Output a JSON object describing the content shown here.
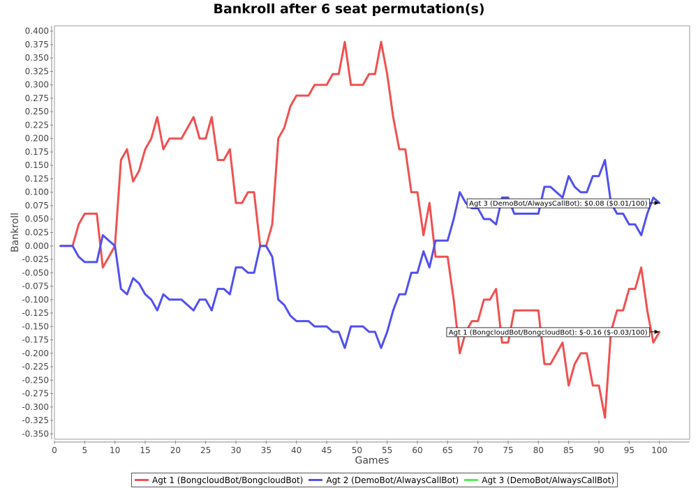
{
  "chart_data": {
    "type": "line",
    "title": "Bankroll after 6 seat permutation(s)",
    "xlabel": "Games",
    "ylabel": "Bankroll",
    "xlim": [
      0,
      105
    ],
    "ylim": [
      -0.36,
      0.41
    ],
    "x_ticks": [
      0,
      5,
      10,
      15,
      20,
      25,
      30,
      35,
      40,
      45,
      50,
      55,
      60,
      65,
      70,
      75,
      80,
      85,
      90,
      95,
      100
    ],
    "y_ticks": [
      -0.35,
      -0.325,
      -0.3,
      -0.275,
      -0.25,
      -0.225,
      -0.2,
      -0.175,
      -0.15,
      -0.125,
      -0.1,
      -0.075,
      -0.05,
      -0.025,
      0.0,
      0.025,
      0.05,
      0.075,
      0.1,
      0.125,
      0.15,
      0.175,
      0.2,
      0.225,
      0.25,
      0.275,
      0.3,
      0.325,
      0.35,
      0.375,
      0.4
    ],
    "grid": false,
    "legend_position": "bottom",
    "series": [
      {
        "name": "Agt 1 (BongcloudBot/BongcloudBot)",
        "color": "#f05050",
        "x": [
          1,
          2,
          3,
          4,
          5,
          6,
          7,
          8,
          9,
          10,
          11,
          12,
          13,
          14,
          15,
          16,
          17,
          18,
          19,
          20,
          21,
          22,
          23,
          24,
          25,
          26,
          27,
          28,
          29,
          30,
          31,
          32,
          33,
          34,
          35,
          36,
          37,
          38,
          39,
          40,
          41,
          42,
          43,
          44,
          45,
          46,
          47,
          48,
          49,
          50,
          51,
          52,
          53,
          54,
          55,
          56,
          57,
          58,
          59,
          60,
          61,
          62,
          63,
          64,
          65,
          66,
          67,
          68,
          69,
          70,
          71,
          72,
          73,
          74,
          75,
          76,
          77,
          78,
          79,
          80,
          81,
          82,
          83,
          84,
          85,
          86,
          87,
          88,
          89,
          90,
          91,
          92,
          93,
          94,
          95,
          96,
          97,
          98,
          99,
          100
        ],
        "values": [
          0,
          0,
          0,
          0.04,
          0.06,
          0.06,
          0.06,
          -0.04,
          -0.02,
          0,
          0.16,
          0.18,
          0.12,
          0.14,
          0.18,
          0.2,
          0.24,
          0.18,
          0.2,
          0.2,
          0.2,
          0.22,
          0.24,
          0.2,
          0.2,
          0.24,
          0.16,
          0.16,
          0.18,
          0.08,
          0.08,
          0.1,
          0.1,
          0,
          0,
          0.04,
          0.2,
          0.22,
          0.26,
          0.28,
          0.28,
          0.28,
          0.3,
          0.3,
          0.3,
          0.32,
          0.32,
          0.38,
          0.3,
          0.3,
          0.3,
          0.32,
          0.32,
          0.38,
          0.32,
          0.24,
          0.18,
          0.18,
          0.1,
          0.1,
          0.02,
          0.08,
          -0.02,
          -0.02,
          -0.02,
          -0.1,
          -0.2,
          -0.16,
          -0.14,
          -0.14,
          -0.1,
          -0.1,
          -0.08,
          -0.18,
          -0.18,
          -0.12,
          -0.12,
          -0.12,
          -0.12,
          -0.12,
          -0.22,
          -0.22,
          -0.2,
          -0.18,
          -0.26,
          -0.22,
          -0.2,
          -0.2,
          -0.26,
          -0.26,
          -0.32,
          -0.16,
          -0.12,
          -0.12,
          -0.08,
          -0.08,
          -0.04,
          -0.12,
          -0.18,
          -0.16
        ]
      },
      {
        "name": "Agt 2 (DemoBot/AlwaysCallBot)",
        "color": "#5050f0",
        "x": [
          1,
          2,
          3,
          4,
          5,
          6,
          7,
          8,
          9,
          10,
          11,
          12,
          13,
          14,
          15,
          16,
          17,
          18,
          19,
          20,
          21,
          22,
          23,
          24,
          25,
          26,
          27,
          28,
          29,
          30,
          31,
          32,
          33,
          34,
          35,
          36,
          37,
          38,
          39,
          40,
          41,
          42,
          43,
          44,
          45,
          46,
          47,
          48,
          49,
          50,
          51,
          52,
          53,
          54,
          55,
          56,
          57,
          58,
          59,
          60,
          61,
          62,
          63,
          64,
          65,
          66,
          67,
          68,
          69,
          70,
          71,
          72,
          73,
          74,
          75,
          76,
          77,
          78,
          79,
          80,
          81,
          82,
          83,
          84,
          85,
          86,
          87,
          88,
          89,
          90,
          91,
          92,
          93,
          94,
          95,
          96,
          97,
          98,
          99,
          100
        ],
        "values": [
          0,
          0,
          0,
          -0.02,
          -0.03,
          -0.03,
          -0.03,
          0.02,
          0.01,
          0,
          -0.08,
          -0.09,
          -0.06,
          -0.07,
          -0.09,
          -0.1,
          -0.12,
          -0.09,
          -0.1,
          -0.1,
          -0.1,
          -0.11,
          -0.12,
          -0.1,
          -0.1,
          -0.12,
          -0.08,
          -0.08,
          -0.09,
          -0.04,
          -0.04,
          -0.05,
          -0.05,
          0,
          0,
          -0.02,
          -0.1,
          -0.11,
          -0.13,
          -0.14,
          -0.14,
          -0.14,
          -0.15,
          -0.15,
          -0.15,
          -0.16,
          -0.16,
          -0.19,
          -0.15,
          -0.15,
          -0.15,
          -0.16,
          -0.16,
          -0.19,
          -0.16,
          -0.12,
          -0.09,
          -0.09,
          -0.05,
          -0.05,
          -0.01,
          -0.04,
          0.01,
          0.01,
          0.01,
          0.05,
          0.1,
          0.08,
          0.07,
          0.07,
          0.05,
          0.05,
          0.04,
          0.09,
          0.09,
          0.06,
          0.06,
          0.06,
          0.06,
          0.06,
          0.11,
          0.11,
          0.1,
          0.09,
          0.13,
          0.11,
          0.1,
          0.1,
          0.13,
          0.13,
          0.16,
          0.08,
          0.06,
          0.06,
          0.04,
          0.04,
          0.02,
          0.06,
          0.09,
          0.08
        ]
      },
      {
        "name": "Agt 3 (DemoBot/AlwaysCallBot)",
        "color": "#50f050",
        "x": [],
        "values": []
      }
    ],
    "annotations": [
      {
        "text": "Agt 3 (DemoBot/AlwaysCallBot): $0.08 ($0.01/100)",
        "x": 100,
        "y": 0.08
      },
      {
        "text": "Agt 1 (BongcloudBot/BongcloudBot): $-0.16 ($-0.03/100)",
        "x": 100,
        "y": -0.16
      }
    ]
  }
}
